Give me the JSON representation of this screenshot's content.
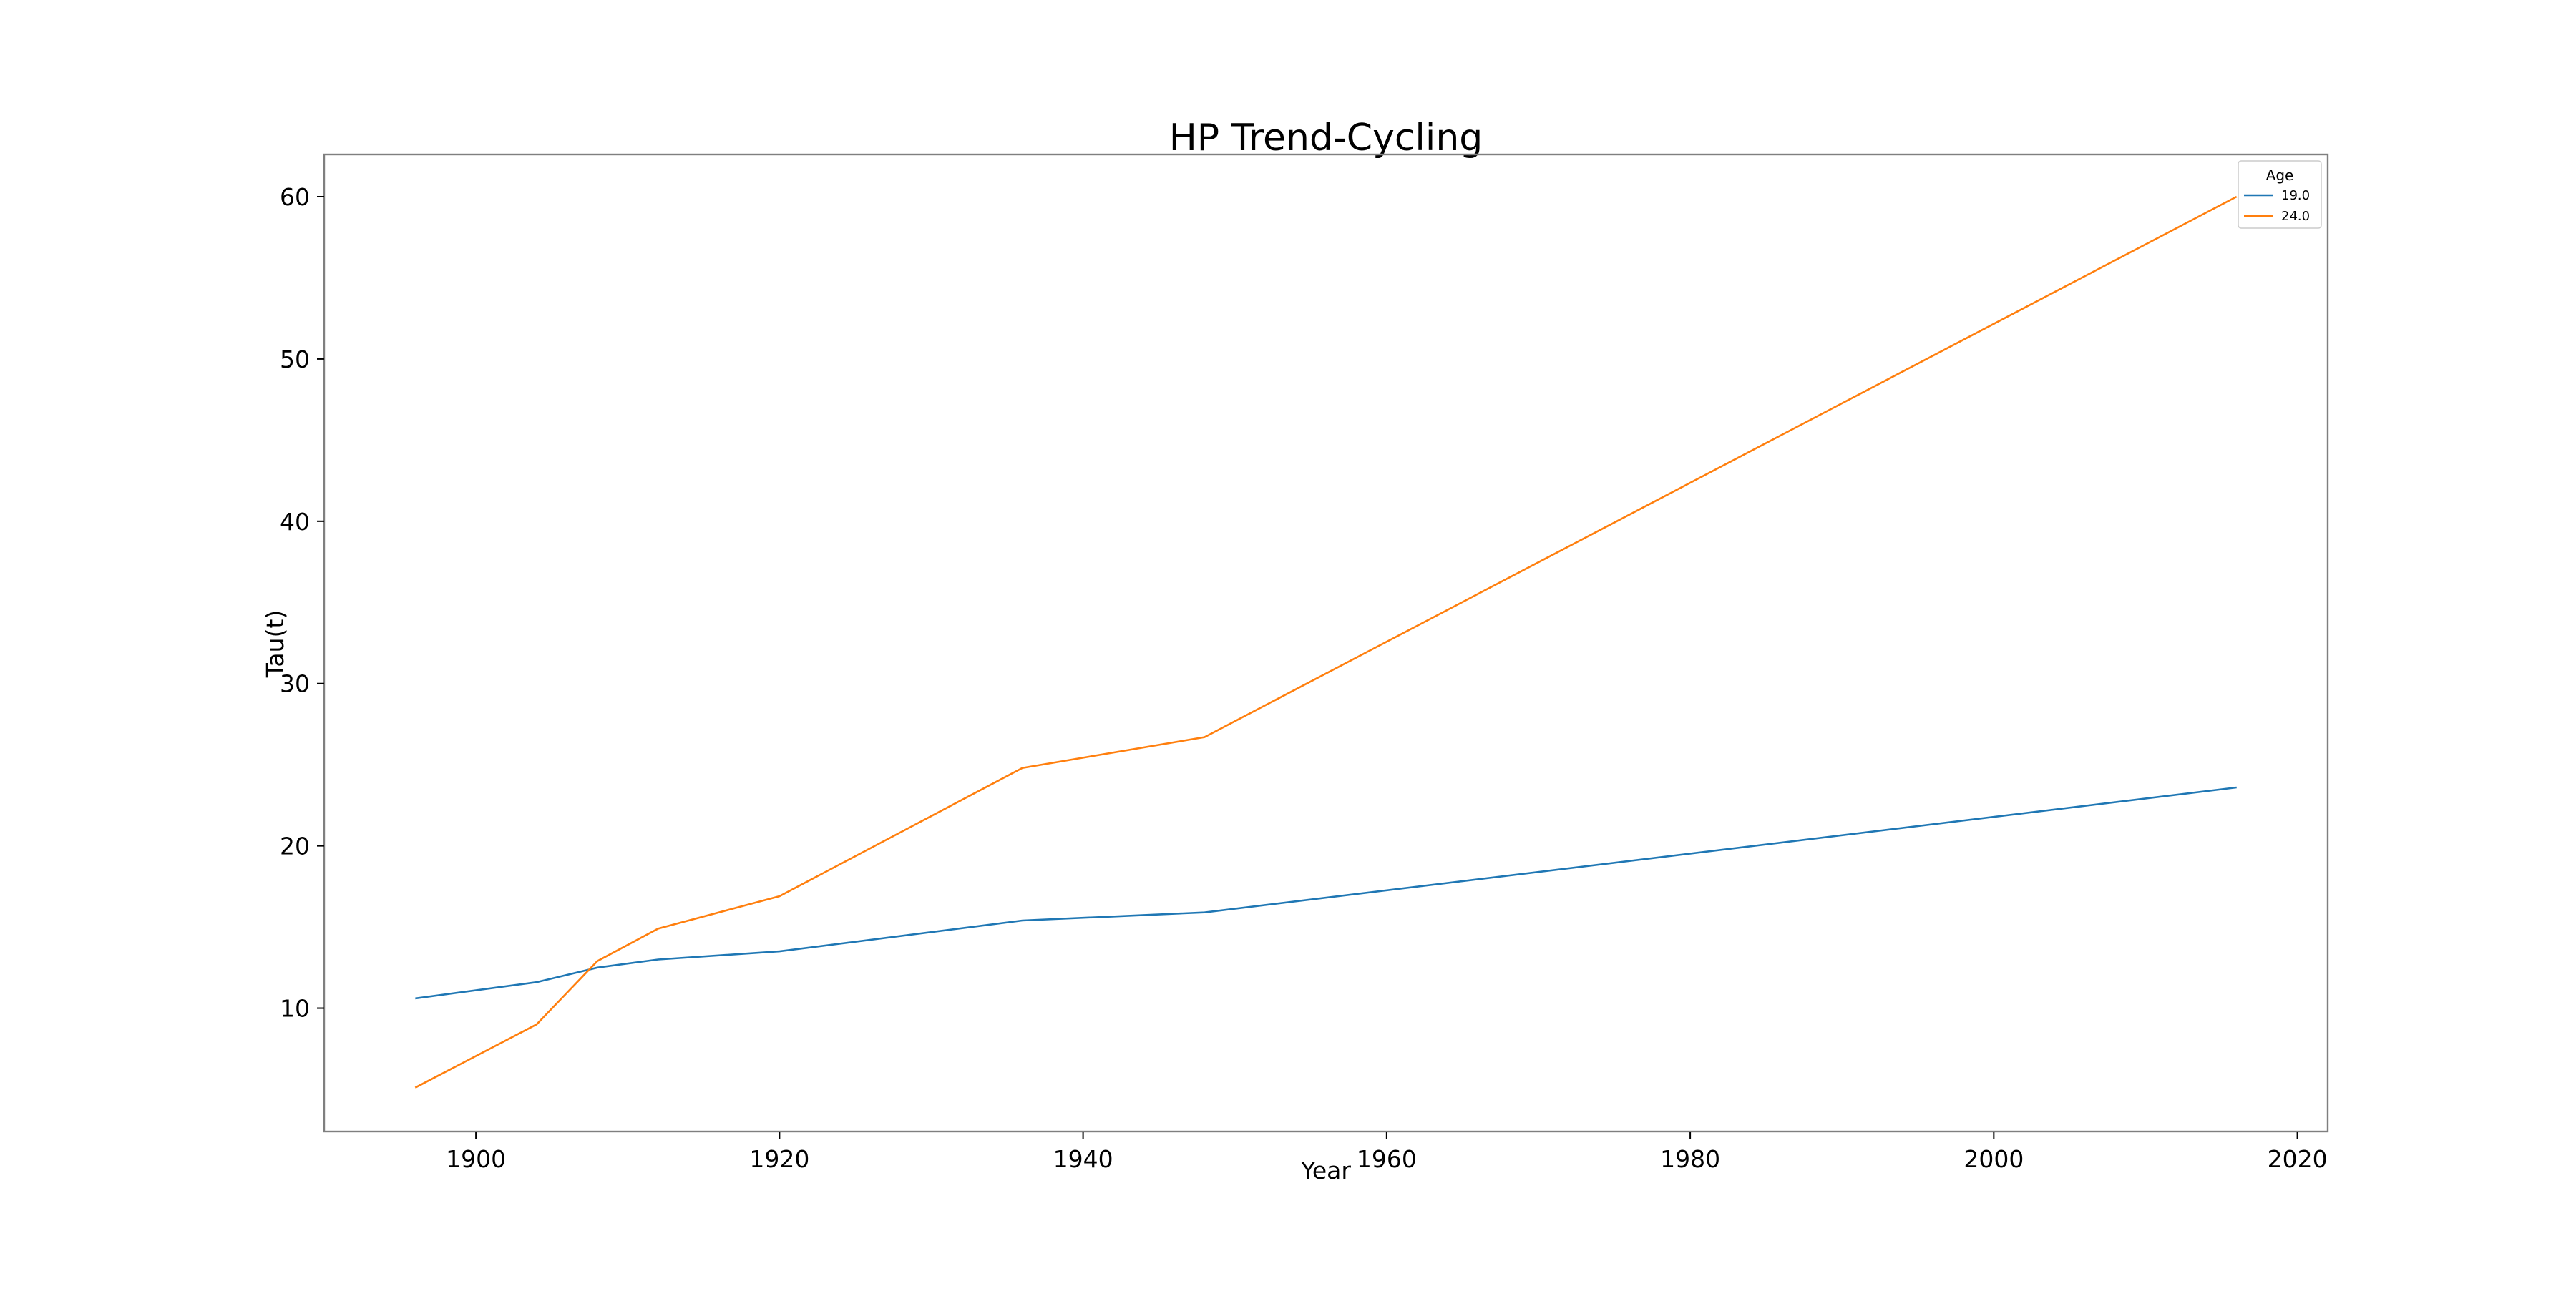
{
  "chart_data": {
    "type": "line",
    "title": "HP Trend-Cycling",
    "xlabel": "Year",
    "ylabel": "Tau(t)",
    "xlim": [
      1890,
      2022
    ],
    "ylim": [
      2.4,
      62.6
    ],
    "x_ticks": [
      1900,
      1920,
      1940,
      1960,
      1980,
      2000,
      2020
    ],
    "y_ticks": [
      10,
      20,
      30,
      40,
      50,
      60
    ],
    "x_tick_labels": [
      "1900",
      "1920",
      "1940",
      "1960",
      "1980",
      "2000",
      "2020"
    ],
    "y_tick_labels": [
      "10",
      "20",
      "30",
      "40",
      "50",
      "60"
    ],
    "grid": false,
    "legend": {
      "title": "Age",
      "placement": "top-right"
    },
    "series": [
      {
        "name": "19.0",
        "color": "#1f77b4",
        "x": [
          1896,
          1904,
          1908,
          1912,
          1920,
          1936,
          1948,
          2016
        ],
        "y": [
          10.6,
          11.6,
          12.5,
          13.0,
          13.5,
          15.4,
          15.9,
          23.6
        ]
      },
      {
        "name": "24.0",
        "color": "#ff7f0e",
        "x": [
          1896,
          1904,
          1908,
          1912,
          1920,
          1936,
          1948,
          2016
        ],
        "y": [
          5.1,
          9.0,
          12.9,
          14.9,
          16.9,
          24.8,
          26.7,
          60.0
        ]
      }
    ]
  }
}
